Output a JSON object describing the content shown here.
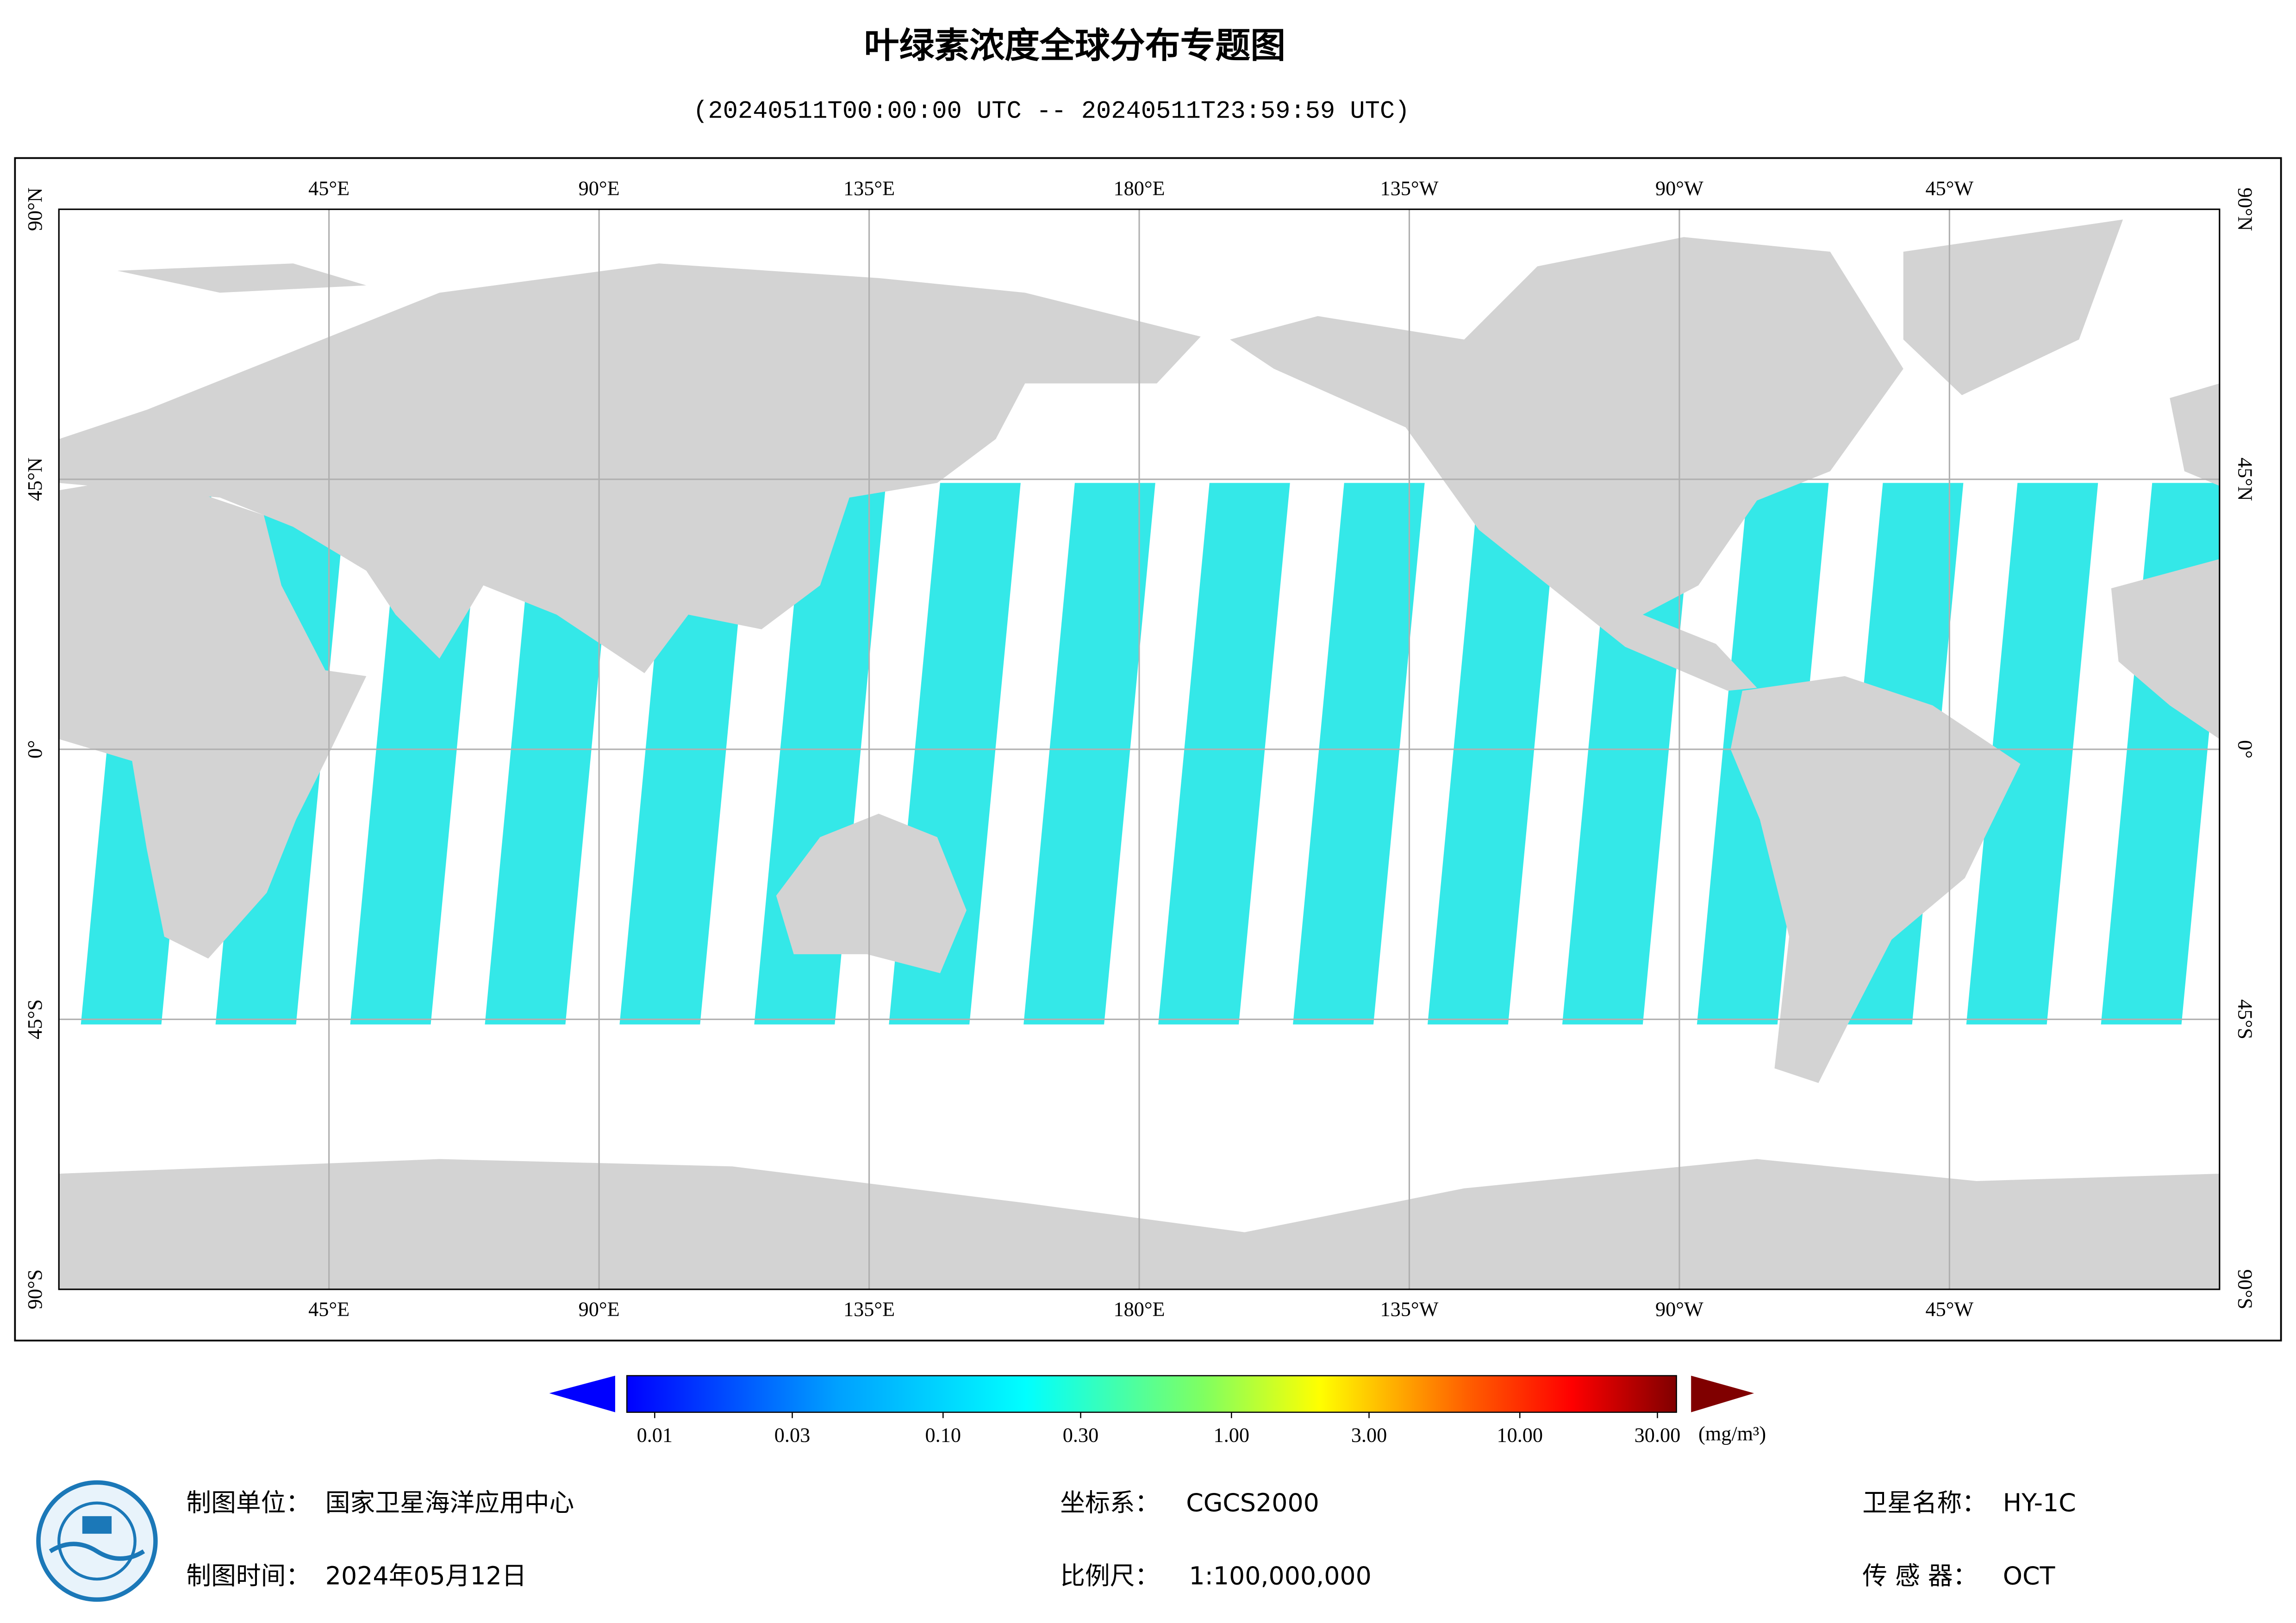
{
  "header": {
    "title": "叶绿素浓度全球分布专题图",
    "subtitle": "(20240511T00:00:00 UTC -- 20240511T23:59:59 UTC)"
  },
  "map": {
    "lon_range": [
      0,
      360
    ],
    "lat_range": [
      -90,
      90
    ],
    "lon_ticks": [
      {
        "value": 45,
        "label": "45°E"
      },
      {
        "value": 90,
        "label": "90°E"
      },
      {
        "value": 135,
        "label": "135°E"
      },
      {
        "value": 180,
        "label": "180°E"
      },
      {
        "value": 225,
        "label": "135°W"
      },
      {
        "value": 270,
        "label": "90°W"
      },
      {
        "value": 315,
        "label": "45°W"
      }
    ],
    "lat_ticks": [
      {
        "value": 90,
        "label": "90°N"
      },
      {
        "value": 45,
        "label": "45°N"
      },
      {
        "value": 0,
        "label": "0°"
      },
      {
        "value": -45,
        "label": "45°S"
      },
      {
        "value": -90,
        "label": "90°S"
      }
    ]
  },
  "colorbar": {
    "scale": "log",
    "range": [
      0.01,
      30
    ],
    "ticks": [
      0.01,
      0.03,
      {
        "value": 0.1,
        "label": "0.10"
      },
      {
        "value": 0.3,
        "label": "0.30"
      },
      {
        "value": 1,
        "label": "1.00"
      },
      {
        "value": 3,
        "label": "3.00"
      },
      {
        "value": 10,
        "label": "10.00"
      },
      {
        "value": 30,
        "label": "30.00"
      }
    ],
    "unit": "(mg/m³)"
  },
  "footer": {
    "producer_label": "制图单位：",
    "producer": "国家卫星海洋应用中心",
    "crs_label": "坐标系：",
    "crs": "CGCS2000",
    "satellite_label": "卫星名称：",
    "satellite": "HY-1C",
    "date_label": "制图时间：",
    "date": "2024年05月12日",
    "scale_label": "比例尺：",
    "scale": "1:100,000,000",
    "sensor_label": "传 感 器：",
    "sensor": "OCT"
  }
}
